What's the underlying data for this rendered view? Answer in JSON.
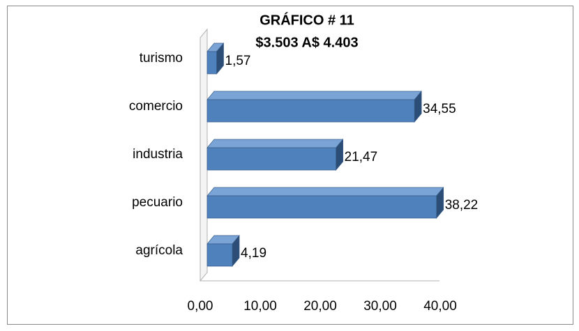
{
  "chart_data": {
    "type": "bar",
    "orientation": "horizontal",
    "title": "GRÁFICO # 11",
    "subtitle": "$3.503 A$ 4.403",
    "categories": [
      "agrícola",
      "pecuario",
      "industria",
      "comercio",
      "turismo"
    ],
    "values": [
      4.19,
      38.22,
      21.47,
      34.55,
      1.57
    ],
    "value_labels": [
      "4,19",
      "38,22",
      "21,47",
      "34,55",
      "1,57"
    ],
    "color": "#4f81bd",
    "xlim": [
      0,
      40
    ],
    "xticks": [
      {
        "value": 0,
        "label": "0,00"
      },
      {
        "value": 10,
        "label": "10,00"
      },
      {
        "value": 20,
        "label": "20,00"
      },
      {
        "value": 30,
        "label": "30,00"
      },
      {
        "value": 40,
        "label": "40,00"
      }
    ],
    "grid": false
  }
}
